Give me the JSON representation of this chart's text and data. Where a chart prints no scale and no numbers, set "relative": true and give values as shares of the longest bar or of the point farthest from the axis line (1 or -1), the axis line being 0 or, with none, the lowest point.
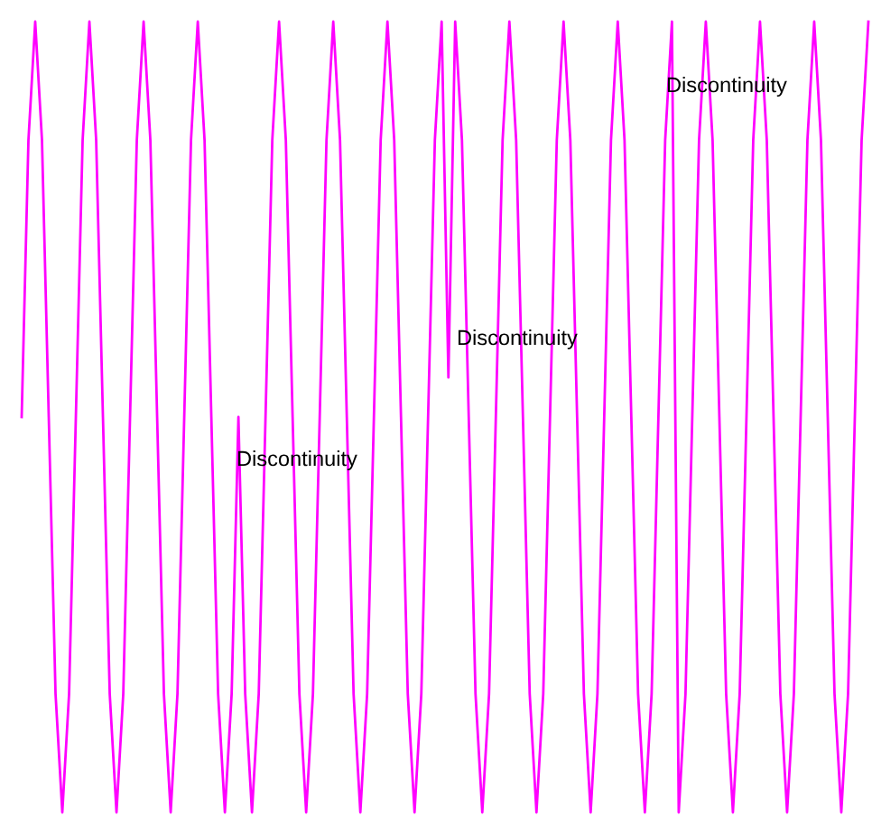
{
  "chart_data": {
    "type": "line",
    "relative": true,
    "categories": [
      null,
      null,
      null,
      null,
      null,
      null,
      null,
      null,
      null,
      null,
      null,
      null,
      null,
      null,
      null,
      null,
      null,
      null,
      null,
      null,
      null,
      null,
      null,
      null,
      null,
      null,
      null,
      null,
      null,
      null,
      null,
      null,
      null,
      null,
      null,
      null,
      null,
      null,
      null,
      null,
      null,
      null,
      null,
      null,
      null,
      null,
      null,
      null,
      null,
      null,
      null,
      null,
      null,
      null,
      null,
      null,
      null,
      null,
      null,
      null,
      null,
      null,
      null,
      null,
      null,
      null,
      null,
      null,
      null,
      null,
      null,
      null,
      null,
      null,
      null,
      null,
      null,
      null,
      null,
      null,
      null,
      null,
      null,
      null,
      null,
      null,
      null,
      null,
      null,
      null,
      null,
      null,
      null,
      null,
      null,
      null,
      null,
      null,
      null,
      null,
      null,
      null,
      null,
      null,
      null,
      null,
      null,
      null,
      null,
      null,
      null,
      null,
      null,
      null,
      null,
      null,
      null,
      null,
      null,
      null,
      null,
      null,
      null,
      null,
      null,
      null
    ],
    "series": [
      {
        "color": "#ff00ff",
        "values": [
          0.5,
          0.85,
          1,
          0.85,
          0.5,
          0.15,
          0,
          0.15,
          0.5,
          0.85,
          1,
          0.85,
          0.5,
          0.15,
          0,
          0.15,
          0.5,
          0.85,
          1,
          0.85,
          0.5,
          0.15,
          0,
          0.15,
          0.5,
          0.85,
          1,
          0.85,
          0.5,
          0.15,
          0,
          0.15,
          0.5,
          0.15,
          0,
          0.15,
          0.5,
          0.85,
          1,
          0.85,
          0.5,
          0.15,
          0,
          0.15,
          0.5,
          0.85,
          1,
          0.85,
          0.5,
          0.15,
          0,
          0.15,
          0.5,
          0.85,
          1,
          0.85,
          0.5,
          0.15,
          0,
          0.15,
          0.5,
          0.85,
          1,
          0.55,
          1,
          0.85,
          0.5,
          0.15,
          0,
          0.15,
          0.5,
          0.85,
          1,
          0.85,
          0.5,
          0.15,
          0,
          0.15,
          0.5,
          0.85,
          1,
          0.85,
          0.5,
          0.15,
          0,
          0.15,
          0.5,
          0.85,
          1,
          0.85,
          0.5,
          0.15,
          0,
          0.15,
          0.5,
          0.85,
          1,
          0,
          0.15,
          0.5,
          0.85,
          1,
          0.85,
          0.5,
          0.15,
          0,
          0.15,
          0.5,
          0.85,
          1,
          0.85,
          0.5,
          0.15,
          0,
          0.15,
          0.5,
          0.85,
          1,
          0.85,
          0.5,
          0.15,
          0,
          0.15,
          0.5,
          0.85,
          1
        ]
      }
    ],
    "annotations": [
      "Discontinuity",
      "Discontinuity",
      "Discontinuity"
    ]
  }
}
